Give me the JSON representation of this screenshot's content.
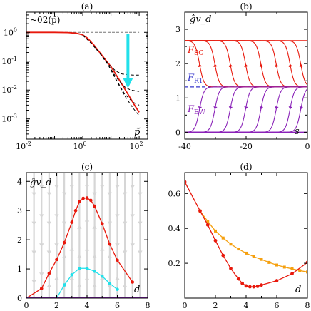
{
  "chart_data": [
    {
      "panel": "(a)",
      "type": "line",
      "x_scale": "log",
      "y_scale": "log",
      "xlim": [
        0.01,
        200
      ],
      "ylim": [
        0.0002,
        5
      ],
      "ylabel": "~02(p̃)",
      "xlabel": "p̃",
      "x_ticks": [
        0.01,
        1,
        100
      ],
      "x_tick_labels": [
        "10",
        "10",
        "10"
      ],
      "x_tick_exps": [
        "-2",
        "0",
        "2"
      ],
      "y_ticks": [
        1,
        0.1,
        0.01,
        0.001
      ],
      "y_tick_labels": [
        "10",
        "10",
        "10",
        "10"
      ],
      "y_tick_exps": [
        "0",
        "-1",
        "-2",
        "-3"
      ],
      "series": [
        {
          "role": "reference",
          "color": "#777777",
          "style": "dashed",
          "x": [
            0.01,
            100
          ],
          "y": [
            1,
            1
          ]
        },
        {
          "role": "main",
          "color": "#e8180c",
          "style": "solid",
          "x": [
            0.01,
            0.1,
            0.3,
            0.6,
            1,
            1.5,
            2.5,
            4,
            7,
            10,
            20,
            40,
            70,
            100
          ],
          "y": [
            1,
            1,
            0.98,
            0.93,
            0.82,
            0.62,
            0.36,
            0.2,
            0.1,
            0.065,
            0.022,
            0.0072,
            0.0029,
            0.0017
          ]
        },
        {
          "color": "#000000",
          "style": "dashed",
          "x": [
            1,
            2,
            4,
            8,
            15,
            25,
            40,
            60,
            100
          ],
          "y": [
            0.8,
            0.42,
            0.19,
            0.08,
            0.045,
            0.036,
            0.034,
            0.033,
            0.033
          ]
        },
        {
          "color": "#000000",
          "style": "dashed",
          "x": [
            1,
            2,
            4,
            8,
            15,
            30,
            50,
            100
          ],
          "y": [
            0.8,
            0.42,
            0.19,
            0.075,
            0.028,
            0.013,
            0.01,
            0.009
          ]
        },
        {
          "color": "#000000",
          "style": "dashed",
          "x": [
            1,
            2,
            4,
            8,
            15,
            30,
            60,
            100
          ],
          "y": [
            0.8,
            0.42,
            0.19,
            0.074,
            0.024,
            0.0075,
            0.0038,
            0.003
          ]
        },
        {
          "color": "#000000",
          "style": "dashed",
          "x": [
            1,
            2,
            4,
            8,
            15,
            30,
            60,
            100
          ],
          "y": [
            0.8,
            0.42,
            0.19,
            0.074,
            0.023,
            0.0066,
            0.0024,
            0.0013
          ]
        }
      ],
      "arrow": {
        "color": "#22e0ea",
        "x": 40,
        "y_from": 0.9,
        "y_to": 0.013
      }
    },
    {
      "panel": "(b)",
      "type": "line",
      "xlim": [
        -40,
        0
      ],
      "ylim": [
        -0.2,
        3.5
      ],
      "ylabel": "ĝv_d",
      "xlabel": "s",
      "x_ticks": [
        -40,
        -20,
        0
      ],
      "x_tick_labels": [
        "-40",
        "-20",
        "0"
      ],
      "y_ticks": [
        0,
        1,
        2,
        3
      ],
      "y_tick_labels": [
        "0",
        "1",
        "2",
        "3"
      ],
      "fixed_points": {
        "F_SC": {
          "value": 2.67,
          "color": "#e8180c",
          "label": "F",
          "sub": "SC"
        },
        "F_RT": {
          "value": 1.32,
          "color": "#3535cc",
          "label": "F",
          "sub": "RT"
        },
        "F_EW": {
          "value": 0,
          "color": "#8a22b8",
          "label": "F",
          "sub": "EW"
        }
      },
      "flow_offsets_s": [
        0,
        -3.5,
        -8,
        -13,
        -18,
        -23,
        -28,
        -33
      ]
    },
    {
      "panel": "(c)",
      "type": "line",
      "xlim": [
        0,
        8
      ],
      "ylim": [
        0,
        4.3
      ],
      "ylabel": "ĝv_d",
      "xlabel": "d",
      "x_ticks": [
        0,
        2,
        4,
        6,
        8
      ],
      "x_tick_labels": [
        "0",
        "2",
        "4",
        "6",
        "8"
      ],
      "y_ticks": [
        0,
        1,
        2,
        3,
        4
      ],
      "y_tick_labels": [
        "0",
        "1",
        "2",
        "3",
        "4"
      ],
      "series": [
        {
          "color": "#e8180c",
          "x": [
            0,
            1,
            1.5,
            2,
            2.5,
            3,
            3.25,
            3.5,
            3.75,
            4,
            4.25,
            4.5,
            5,
            5.5,
            6,
            7
          ],
          "y": [
            0,
            0.33,
            0.85,
            1.32,
            1.9,
            2.6,
            3.0,
            3.3,
            3.42,
            3.43,
            3.35,
            3.15,
            2.55,
            1.85,
            1.3,
            0.55
          ]
        },
        {
          "color": "#22e0ea",
          "x": [
            2,
            2.5,
            3,
            3.5,
            4,
            4.5,
            5,
            5.5,
            6
          ],
          "y": [
            0,
            0.45,
            0.8,
            1.02,
            1.02,
            0.92,
            0.75,
            0.5,
            0.3
          ]
        },
        {
          "color": "#8a22b8",
          "x": [
            0,
            1,
            2,
            3,
            4,
            5,
            6,
            7,
            8
          ],
          "y": [
            0,
            0,
            0,
            0,
            0,
            0,
            0,
            0,
            0
          ]
        }
      ],
      "flow_arrow_columns_d": [
        0.5,
        1,
        1.5,
        2,
        2.5,
        3,
        3.5,
        4,
        4.5,
        5,
        5.5,
        6,
        6.5,
        7,
        7.5
      ]
    },
    {
      "panel": "(d)",
      "type": "line",
      "xlim": [
        0,
        8
      ],
      "ylim": [
        0,
        0.72
      ],
      "xlabel": "d",
      "x_ticks": [
        0,
        2,
        4,
        6,
        8
      ],
      "x_tick_labels": [
        "0",
        "2",
        "4",
        "6",
        "8"
      ],
      "y_ticks": [
        0.2,
        0.4,
        0.6
      ],
      "y_tick_labels": [
        "0.2",
        "0.4",
        "0.6"
      ],
      "series": [
        {
          "color": "#e8180c",
          "x": [
            0,
            1,
            1.5,
            2,
            2.5,
            3,
            3.5,
            3.75,
            4,
            4.25,
            4.5,
            4.75,
            5,
            6,
            7,
            8
          ],
          "y": [
            0.667,
            0.5,
            0.42,
            0.33,
            0.245,
            0.17,
            0.11,
            0.085,
            0.07,
            0.065,
            0.065,
            0.068,
            0.075,
            0.1,
            0.14,
            0.205
          ]
        },
        {
          "color": "#f5a00f",
          "x": [
            1,
            1.5,
            2,
            2.5,
            3,
            3.5,
            4,
            4.5,
            5,
            5.5,
            6,
            6.5,
            7,
            7.5,
            8
          ],
          "y": [
            0.5,
            0.44,
            0.385,
            0.345,
            0.31,
            0.282,
            0.258,
            0.238,
            0.222,
            0.205,
            0.19,
            0.178,
            0.168,
            0.158,
            0.15
          ]
        }
      ]
    }
  ]
}
